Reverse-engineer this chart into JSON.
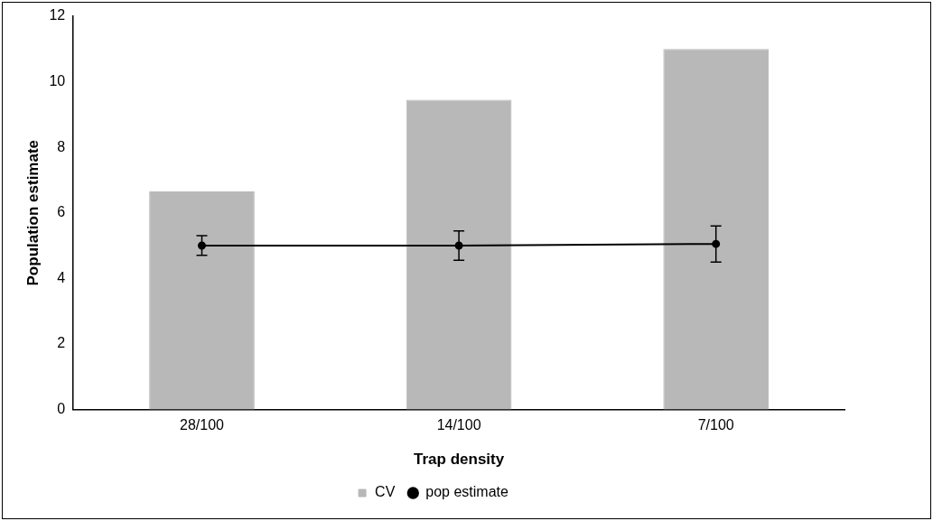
{
  "chart_data": {
    "type": "bar",
    "xlabel": "Trap density",
    "ylabel": "Population estimate",
    "categories": [
      "28/100",
      "14/100",
      "7/100"
    ],
    "series": [
      {
        "name": "CV",
        "color": "#b8b8b8",
        "values": [
          6.65,
          9.45,
          11.0
        ]
      },
      {
        "name": "pop estimate",
        "type": "line",
        "color": "#000000",
        "values": [
          5.0,
          5.0,
          5.05
        ],
        "errors": [
          0.3,
          0.45,
          0.55
        ]
      }
    ],
    "ylim": [
      0,
      12
    ],
    "yticks": [
      0,
      2,
      4,
      6,
      8,
      10,
      12
    ],
    "grid": false,
    "legend": "bottom",
    "marker": "circle",
    "line_style": "solid"
  }
}
